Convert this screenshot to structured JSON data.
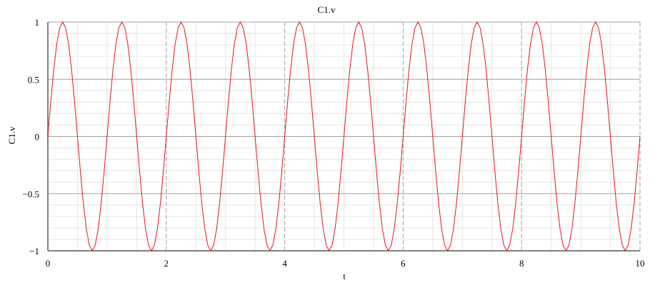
{
  "chart_data": {
    "type": "line",
    "title": "C1.v",
    "xlabel": "t",
    "ylabel": "C1.v",
    "xlim": [
      0,
      10
    ],
    "ylim": [
      -1,
      1
    ],
    "x_ticks": [
      0,
      2,
      4,
      6,
      8,
      10
    ],
    "x_tick_labels": [
      "0",
      "2",
      "4",
      "6",
      "8",
      "10"
    ],
    "y_ticks": [
      -1,
      -0.5,
      0,
      0.5,
      1
    ],
    "y_tick_labels": [
      "−1",
      "−0.5",
      "0",
      "0.5",
      "1"
    ],
    "grid": true,
    "series": [
      {
        "color": "#e8141c",
        "function": "sin",
        "amplitude": 1,
        "frequency": 1,
        "x_start": 0,
        "x_end": 10
      }
    ]
  }
}
